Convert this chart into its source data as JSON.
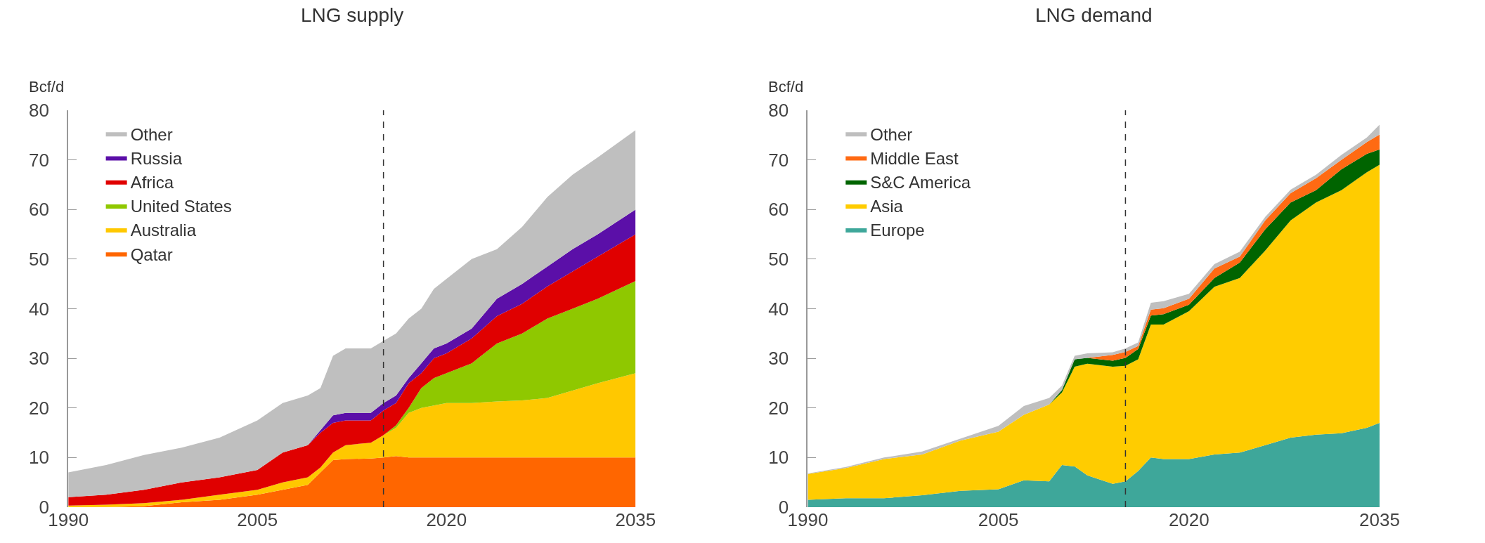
{
  "chart_data": [
    {
      "type": "area",
      "stacked": true,
      "title": "LNG supply",
      "ylabel": "Bcf/d",
      "x": [
        1990,
        1993,
        1996,
        1999,
        2002,
        2005,
        2007,
        2009,
        2010,
        2011,
        2012,
        2014,
        2015,
        2016,
        2017,
        2018,
        2019,
        2020,
        2022,
        2024,
        2026,
        2028,
        2030,
        2032,
        2035
      ],
      "xlim": [
        1990,
        2035
      ],
      "xticks": [
        1990,
        2005,
        2020,
        2035
      ],
      "ylim": [
        0,
        80
      ],
      "yticks": [
        0,
        10,
        20,
        30,
        40,
        50,
        60,
        70,
        80
      ],
      "legend": "top left",
      "ref_lines": [
        {
          "axis": "x",
          "value": 2015,
          "color": "#333333",
          "line_style": "dashed"
        }
      ],
      "series": [
        {
          "name": "Qatar",
          "color": "#ff6600",
          "values": [
            0,
            0,
            0.2,
            1,
            1.5,
            2.5,
            3.5,
            4.5,
            7,
            9.5,
            9.7,
            9.8,
            10,
            10.3,
            10,
            10,
            10,
            10,
            10,
            10,
            10,
            10,
            10,
            10,
            10
          ]
        },
        {
          "name": "Australia",
          "color": "#ffc800",
          "values": [
            0.3,
            0.5,
            0.6,
            0.5,
            1,
            1,
            1.5,
            1.5,
            1,
            1.5,
            2.8,
            3.2,
            4.5,
            5.7,
            9,
            10,
            10.5,
            11,
            11,
            11.3,
            11.5,
            12,
            13.5,
            15,
            17
          ]
        },
        {
          "name": "United States",
          "color": "#8fc800",
          "values": [
            0,
            0,
            0,
            0,
            0,
            0,
            0,
            0,
            0,
            0,
            0,
            0,
            0,
            0.5,
            1,
            4,
            5.5,
            6,
            8,
            11.7,
            13.5,
            16,
            16.5,
            17,
            18.6
          ]
        },
        {
          "name": "Africa",
          "color": "#e00000",
          "values": [
            1.7,
            2,
            2.7,
            3.5,
            3.5,
            4,
            6,
            6.5,
            7,
            6,
            5,
            4.5,
            5,
            4.5,
            5,
            3,
            4,
            4,
            5,
            5.5,
            6,
            6.5,
            7.5,
            8.5,
            9.4
          ]
        },
        {
          "name": "Russia",
          "color": "#5b0fa8",
          "values": [
            0,
            0,
            0,
            0,
            0,
            0,
            0,
            0,
            0.5,
            1.5,
            1.5,
            1.5,
            1.5,
            1.5,
            1,
            2,
            2,
            2,
            2,
            3.5,
            4,
            4,
            4.5,
            4.5,
            5
          ]
        },
        {
          "name": "Other",
          "color": "#bfbfbf",
          "values": [
            5,
            6,
            7,
            7,
            8,
            10,
            10,
            10,
            8.5,
            12,
            13,
            13,
            12.5,
            12.5,
            12,
            11,
            12,
            13,
            14,
            10,
            11.5,
            14,
            15,
            15.5,
            16
          ]
        }
      ]
    },
    {
      "type": "area",
      "stacked": true,
      "title": "LNG demand",
      "ylabel": "Bcf/d",
      "x": [
        1990,
        1993,
        1996,
        1999,
        2002,
        2005,
        2007,
        2009,
        2010,
        2011,
        2012,
        2014,
        2015,
        2016,
        2017,
        2018,
        2020,
        2022,
        2024,
        2026,
        2028,
        2030,
        2032,
        2034,
        2035
      ],
      "xlim": [
        1990,
        2035
      ],
      "xticks": [
        1990,
        2005,
        2020,
        2035
      ],
      "ylim": [
        0,
        80
      ],
      "yticks": [
        0,
        10,
        20,
        30,
        40,
        50,
        60,
        70,
        80
      ],
      "legend": "top left",
      "ref_lines": [
        {
          "axis": "x",
          "value": 2015,
          "color": "#333333",
          "line_style": "dashed"
        }
      ],
      "series": [
        {
          "name": "Europe",
          "color": "#3ea79a",
          "values": [
            1.5,
            1.8,
            1.8,
            2.4,
            3.3,
            3.6,
            5.4,
            5.2,
            8.5,
            8.2,
            6.4,
            4.7,
            5.2,
            7.3,
            10,
            9.7,
            9.7,
            10.6,
            11,
            12.5,
            14,
            14.6,
            14.9,
            16,
            17
          ]
        },
        {
          "name": "Asia",
          "color": "#ffcc00",
          "values": [
            5.2,
            6.1,
            7.9,
            8.2,
            10.1,
            11.6,
            13.2,
            15.5,
            14.6,
            20.1,
            22.5,
            23.6,
            23.3,
            22.5,
            26.8,
            27.1,
            29.8,
            33.8,
            35.2,
            39.2,
            43.8,
            46.8,
            49,
            51.5,
            52
          ]
        },
        {
          "name": "S&C America",
          "color": "#006400",
          "values": [
            0,
            0,
            0,
            0,
            0,
            0,
            0,
            0,
            0.5,
            1.5,
            1.2,
            1.2,
            1.6,
            2.1,
            1.8,
            2.1,
            1.3,
            1.8,
            3.1,
            4.3,
            3.6,
            2.5,
            4.2,
            3.7,
            3.1
          ]
        },
        {
          "name": "Middle East",
          "color": "#ff6a13",
          "values": [
            0,
            0,
            0,
            0,
            0,
            0,
            0,
            0,
            0,
            0,
            0,
            1.2,
            1.2,
            0.6,
            1.2,
            1.2,
            1.2,
            1.9,
            1.2,
            1.8,
            1.9,
            2.4,
            1.9,
            2.4,
            3.0
          ]
        },
        {
          "name": "Other",
          "color": "#bfbfbf",
          "values": [
            0.1,
            0.2,
            0.3,
            0.6,
            0.4,
            1.2,
            1.8,
            1.3,
            0.9,
            0.7,
            0.9,
            0.5,
            0.7,
            0.7,
            1.4,
            1.4,
            1.0,
            0.9,
            1.0,
            0.7,
            0.7,
            0.7,
            1.0,
            0.9,
            2.0
          ]
        }
      ]
    }
  ]
}
